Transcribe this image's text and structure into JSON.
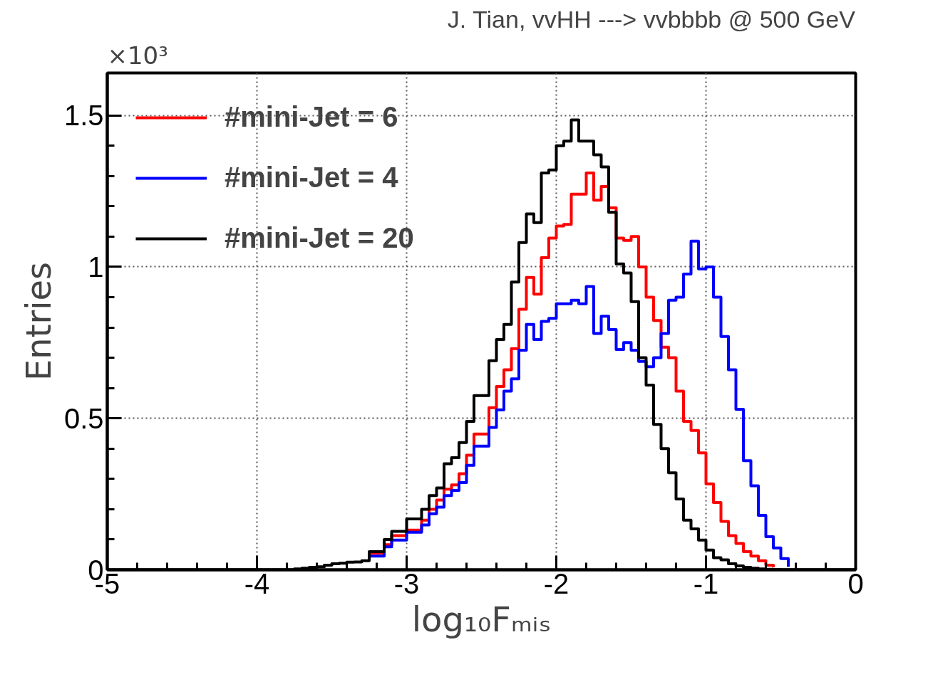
{
  "chart_data": {
    "type": "step",
    "title": "J. Tian, vvHH ---> vvbbbb @ 500 GeV",
    "xlabel": "log₁₀Fₘᵢₛ",
    "ylabel": "Entries",
    "annotations": [
      "×10³"
    ],
    "x": [
      -5,
      -3.75,
      -3.7,
      -3.65,
      -3.6,
      -3.55,
      -3.5,
      -3.45,
      -3.4,
      -3.35,
      -3.3,
      -3.25,
      -3.2,
      -3.15,
      -3.1,
      -3.05,
      -3.0,
      -2.95,
      -2.9,
      -2.85,
      -2.8,
      -2.75,
      -2.7,
      -2.65,
      -2.6,
      -2.55,
      -2.5,
      -2.45,
      -2.4,
      -2.35,
      -2.3,
      -2.25,
      -2.2,
      -2.15,
      -2.1,
      -2.05,
      -2.0,
      -1.95,
      -1.9,
      -1.85,
      -1.8,
      -1.75,
      -1.7,
      -1.65,
      -1.6,
      -1.55,
      -1.5,
      -1.45,
      -1.4,
      -1.35,
      -1.3,
      -1.25,
      -1.2,
      -1.15,
      -1.1,
      -1.05,
      -1.0,
      -0.95,
      -0.9,
      -0.85,
      -0.8,
      -0.75,
      -0.7,
      -0.65,
      -0.6,
      -0.55,
      -0.5,
      -0.45,
      -0.4,
      -0.35,
      0
    ],
    "series": [
      {
        "name": "#mini-Jet = 6",
        "color": "#ff0000",
        "x": [
          -3.25,
          -3.2,
          -3.15,
          -3.1,
          -3.05,
          -3.0,
          -2.95,
          -2.9,
          -2.85,
          -2.8,
          -2.75,
          -2.7,
          -2.65,
          -2.6,
          -2.55,
          -2.5,
          -2.45,
          -2.4,
          -2.35,
          -2.3,
          -2.25,
          -2.2,
          -2.15,
          -2.1,
          -2.05,
          -2.0,
          -1.95,
          -1.9,
          -1.85,
          -1.8,
          -1.75,
          -1.7,
          -1.65,
          -1.6,
          -1.55,
          -1.5,
          -1.45,
          -1.4,
          -1.35,
          -1.3,
          -1.25,
          -1.2,
          -1.15,
          -1.1,
          -1.05,
          -1.0,
          -0.95,
          -0.9,
          -0.85,
          -0.8,
          -0.75,
          -0.7,
          -0.65,
          -0.6,
          -0.55
        ],
        "values": [
          0.055,
          0.055,
          0.083,
          0.113,
          0.113,
          0.131,
          0.131,
          0.164,
          0.2,
          0.23,
          0.266,
          0.28,
          0.317,
          0.378,
          0.448,
          0.448,
          0.535,
          0.605,
          0.66,
          0.73,
          0.86,
          0.965,
          0.91,
          1.03,
          1.095,
          1.135,
          1.14,
          1.24,
          1.24,
          1.31,
          1.22,
          1.265,
          1.195,
          1.095,
          1.087,
          1.1,
          1.0,
          0.9,
          0.823,
          0.735,
          0.7,
          0.59,
          0.49,
          0.46,
          0.386,
          0.284,
          0.222,
          0.16,
          0.113,
          0.087,
          0.06,
          0.045,
          0.03,
          0.015,
          0.008
        ]
      },
      {
        "name": "#mini-Jet = 4",
        "color": "#0000ff",
        "x": [
          -3.25,
          -3.2,
          -3.15,
          -3.1,
          -3.05,
          -3.0,
          -2.95,
          -2.9,
          -2.85,
          -2.8,
          -2.75,
          -2.7,
          -2.65,
          -2.6,
          -2.55,
          -2.5,
          -2.45,
          -2.4,
          -2.35,
          -2.3,
          -2.25,
          -2.2,
          -2.15,
          -2.1,
          -2.05,
          -2.0,
          -1.95,
          -1.9,
          -1.85,
          -1.8,
          -1.75,
          -1.7,
          -1.65,
          -1.6,
          -1.55,
          -1.5,
          -1.45,
          -1.4,
          -1.35,
          -1.3,
          -1.25,
          -1.2,
          -1.15,
          -1.1,
          -1.05,
          -1.0,
          -0.95,
          -0.9,
          -0.85,
          -0.8,
          -0.75,
          -0.7,
          -0.65,
          -0.6,
          -0.55,
          -0.5,
          -0.45
        ],
        "values": [
          0.045,
          0.045,
          0.076,
          0.098,
          0.098,
          0.124,
          0.124,
          0.148,
          0.185,
          0.207,
          0.245,
          0.262,
          0.288,
          0.345,
          0.408,
          0.408,
          0.47,
          0.528,
          0.59,
          0.63,
          0.725,
          0.81,
          0.76,
          0.82,
          0.83,
          0.878,
          0.878,
          0.89,
          0.878,
          0.935,
          0.78,
          0.837,
          0.793,
          0.727,
          0.75,
          0.725,
          0.688,
          0.67,
          0.7,
          0.78,
          0.89,
          0.9,
          0.976,
          1.085,
          0.993,
          1.0,
          0.9,
          0.77,
          0.66,
          0.53,
          0.36,
          0.277,
          0.18,
          0.109,
          0.072,
          0.037,
          0.01
        ]
      },
      {
        "name": "#mini-Jet = 20",
        "color": "#000000",
        "values": [
          0,
          0.003,
          0.005,
          0.008,
          0.01,
          0.015,
          0.02,
          0.022,
          0.025,
          0.026,
          0.03,
          0.06,
          0.06,
          0.1,
          0.127,
          0.127,
          0.168,
          0.168,
          0.2,
          0.245,
          0.27,
          0.35,
          0.37,
          0.42,
          0.49,
          0.575,
          0.575,
          0.69,
          0.76,
          0.81,
          0.95,
          1.08,
          1.175,
          1.146,
          1.31,
          1.32,
          1.4,
          1.415,
          1.485,
          1.415,
          1.415,
          1.37,
          1.33,
          1.18,
          1.01,
          0.98,
          0.885,
          0.7,
          0.61,
          0.48,
          0.4,
          0.32,
          0.234,
          0.164,
          0.135,
          0.098,
          0.065,
          0.04,
          0.033,
          0.02,
          0.013,
          0.008,
          0.005,
          0.003,
          0.002,
          0.001,
          0,
          0,
          0,
          0,
          0
        ]
      }
    ],
    "xlim": [
      -5,
      0
    ],
    "ylim": [
      0,
      1.64
    ],
    "xticks": [
      -5,
      -4,
      -3,
      -2,
      -1,
      0
    ],
    "yticks": [
      0,
      {
        "value": 0.5,
        "label": "0.5"
      },
      1,
      1.5
    ],
    "grid": true,
    "legend": "top left",
    "line_style": "solid",
    "marker": "none"
  }
}
